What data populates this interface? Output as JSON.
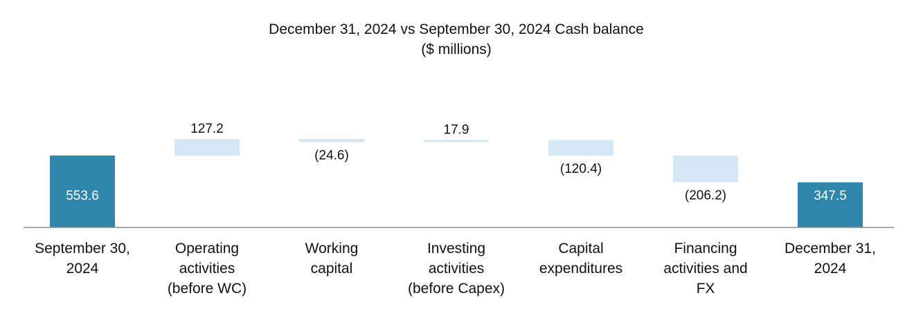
{
  "chart_data": {
    "type": "bar",
    "subtype": "waterfall",
    "title": "December 31, 2024 vs September 30, 2024 Cash  balance",
    "subtitle": "($ millions)",
    "xlabel": "",
    "ylabel": "",
    "grid": false,
    "legend": "none",
    "categories": [
      [
        "September 30,",
        "2024"
      ],
      [
        "Operating",
        "activities",
        "(before WC)"
      ],
      [
        "Working",
        "capital"
      ],
      [
        "Investing",
        "activities",
        "(before Capex)"
      ],
      [
        "Capital",
        "expenditures"
      ],
      [
        "Financing",
        "activities and",
        "FX"
      ],
      [
        "December 31,",
        "2024"
      ]
    ],
    "steps": [
      {
        "kind": "total",
        "value": 553.6,
        "label": "553.6"
      },
      {
        "kind": "delta",
        "value": 127.2,
        "label": "127.2"
      },
      {
        "kind": "delta",
        "value": -24.6,
        "label": "(24.6)"
      },
      {
        "kind": "delta",
        "value": 17.9,
        "label": "17.9"
      },
      {
        "kind": "delta",
        "value": -120.4,
        "label": "(120.4)"
      },
      {
        "kind": "delta",
        "value": -206.2,
        "label": "(206.2)"
      },
      {
        "kind": "total",
        "value": 347.5,
        "label": "347.5"
      }
    ],
    "ylim": [
      0,
      800
    ],
    "colors": {
      "total": "#2e86ab",
      "delta": "#d3e8f4",
      "axis": "#8c8c8c"
    }
  }
}
